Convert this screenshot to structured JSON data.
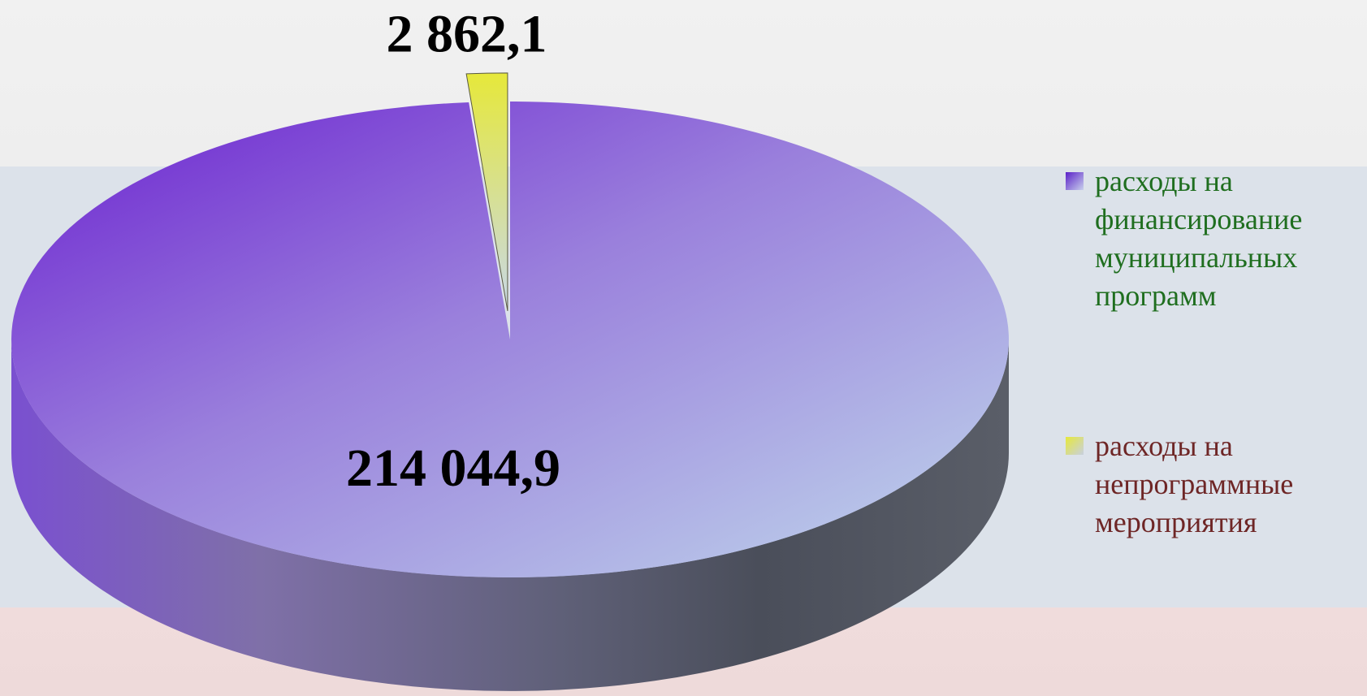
{
  "chart_data": {
    "type": "pie",
    "categories": [
      "расходы на финансирование муниципальных программ",
      "расходы на непрограммные мероприятия"
    ],
    "values": [
      214044.9,
      2862.1
    ],
    "value_labels": [
      "214 044,9",
      "2 862,1"
    ],
    "colors": [
      "#7b4fd8",
      "#e6e83a"
    ]
  }
}
